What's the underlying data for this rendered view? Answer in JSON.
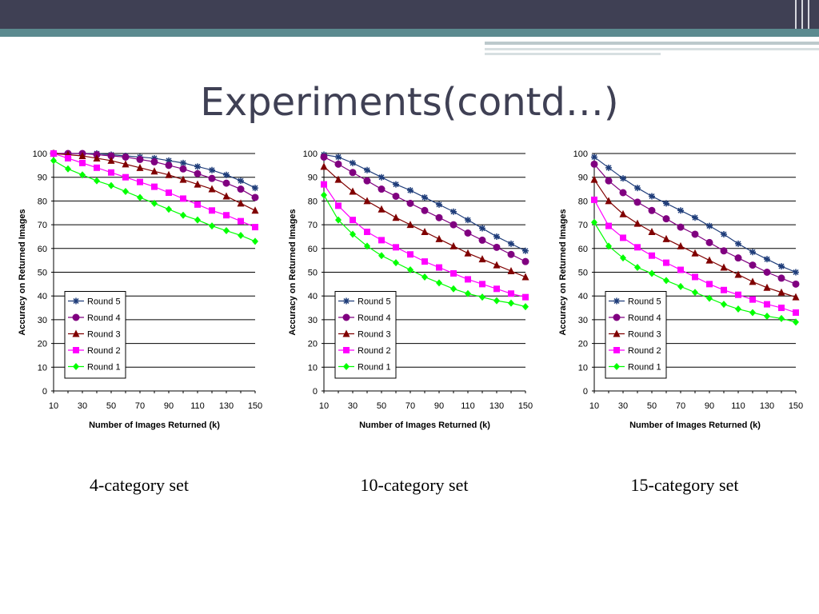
{
  "slide": {
    "title": "Experiments(contd…)",
    "captions": [
      "4-category set",
      "10-category set",
      "15-category set"
    ]
  },
  "colors": {
    "background": "#ffffff",
    "top_band": "#3f4054",
    "teal_band": "#5b8a8f",
    "title": "#3f4054"
  },
  "chart_data": [
    {
      "type": "line",
      "xlabel": "Number of Images Returned (k)",
      "ylabel": "Accuracy on Returned Images",
      "x": [
        10,
        20,
        30,
        40,
        50,
        60,
        70,
        80,
        90,
        100,
        110,
        120,
        130,
        140,
        150
      ],
      "x_ticks": [
        10,
        30,
        50,
        70,
        90,
        110,
        130,
        150
      ],
      "y_ticks": [
        0,
        10,
        20,
        30,
        40,
        50,
        60,
        70,
        80,
        90,
        100
      ],
      "xlim": [
        10,
        150
      ],
      "ylim": [
        0,
        100
      ],
      "grid": "horizontal",
      "legend_position": "lower-left",
      "series": [
        {
          "name": "Round 5",
          "marker": "star",
          "color": "#1f3d7a",
          "values": [
            100,
            100,
            100,
            100,
            99.5,
            99,
            98.5,
            98,
            97,
            96,
            94.5,
            93,
            91,
            88.5,
            85.5
          ]
        },
        {
          "name": "Round 4",
          "marker": "circle",
          "color": "#800080",
          "values": [
            100,
            100,
            100,
            99.5,
            99,
            98.5,
            97.5,
            96.5,
            95,
            93.5,
            91.5,
            89.5,
            87.5,
            85,
            81.5
          ]
        },
        {
          "name": "Round 3",
          "marker": "triangle",
          "color": "#800000",
          "values": [
            100,
            99.5,
            99,
            98,
            97,
            95.5,
            94,
            92.5,
            91,
            89,
            87,
            85,
            82,
            79,
            76
          ]
        },
        {
          "name": "Round 2",
          "marker": "square",
          "color": "#ff00ff",
          "values": [
            100,
            98,
            96,
            94,
            92,
            90,
            88,
            86,
            83.5,
            81,
            78.5,
            76,
            74,
            71.5,
            69
          ]
        },
        {
          "name": "Round 1",
          "marker": "diamond",
          "color": "#00ff00",
          "values": [
            97,
            93.5,
            91,
            88.5,
            86.5,
            84,
            81.5,
            79,
            76.5,
            74,
            72,
            69.5,
            67.5,
            65.5,
            63
          ]
        }
      ]
    },
    {
      "type": "line",
      "xlabel": "Number of Images Returned (k)",
      "ylabel": "Accuracy on Returned Images",
      "x": [
        10,
        20,
        30,
        40,
        50,
        60,
        70,
        80,
        90,
        100,
        110,
        120,
        130,
        140,
        150
      ],
      "x_ticks": [
        10,
        30,
        50,
        70,
        90,
        110,
        130,
        150
      ],
      "y_ticks": [
        0,
        10,
        20,
        30,
        40,
        50,
        60,
        70,
        80,
        90,
        100
      ],
      "xlim": [
        10,
        150
      ],
      "ylim": [
        0,
        100
      ],
      "grid": "horizontal",
      "legend_position": "lower-left",
      "series": [
        {
          "name": "Round 5",
          "marker": "star",
          "color": "#1f3d7a",
          "values": [
            99.5,
            98.5,
            96,
            93,
            90,
            87,
            84.5,
            81.5,
            78.5,
            75.5,
            72,
            68.5,
            65,
            62,
            59
          ]
        },
        {
          "name": "Round 4",
          "marker": "circle",
          "color": "#800080",
          "values": [
            98.5,
            95.5,
            92,
            88.5,
            85,
            82,
            79,
            76,
            73,
            70,
            66.5,
            63.5,
            60.5,
            57.5,
            54.5
          ]
        },
        {
          "name": "Round 3",
          "marker": "triangle",
          "color": "#800000",
          "values": [
            94.5,
            89,
            84,
            80,
            76.5,
            73,
            70,
            67,
            64,
            61,
            58,
            55.5,
            53,
            50.5,
            48
          ]
        },
        {
          "name": "Round 2",
          "marker": "square",
          "color": "#ff00ff",
          "values": [
            87,
            78,
            72,
            67,
            63.5,
            60.5,
            57.5,
            54.5,
            52,
            49.5,
            47,
            45,
            43,
            41,
            39.5
          ]
        },
        {
          "name": "Round 1",
          "marker": "diamond",
          "color": "#00ff00",
          "values": [
            82.5,
            72,
            66,
            61,
            57,
            54,
            51,
            48,
            45.5,
            43,
            41,
            39.5,
            38,
            37,
            35.5
          ]
        }
      ]
    },
    {
      "type": "line",
      "xlabel": "Number of Images Returned (k)",
      "ylabel": "Accuracy on Returned Images",
      "x": [
        10,
        20,
        30,
        40,
        50,
        60,
        70,
        80,
        90,
        100,
        110,
        120,
        130,
        140,
        150
      ],
      "x_ticks": [
        10,
        30,
        50,
        70,
        90,
        110,
        130,
        150
      ],
      "y_ticks": [
        0,
        10,
        20,
        30,
        40,
        50,
        60,
        70,
        80,
        90,
        100
      ],
      "xlim": [
        10,
        150
      ],
      "ylim": [
        0,
        100
      ],
      "grid": "horizontal",
      "legend_position": "lower-left",
      "series": [
        {
          "name": "Round 5",
          "marker": "star",
          "color": "#1f3d7a",
          "values": [
            98.5,
            94,
            89.5,
            85.5,
            82,
            79,
            76,
            73,
            69.5,
            66,
            62,
            58.5,
            55.5,
            52.5,
            50
          ]
        },
        {
          "name": "Round 4",
          "marker": "circle",
          "color": "#800080",
          "values": [
            95.5,
            88.5,
            83.5,
            79.5,
            76,
            72.5,
            69,
            66,
            62.5,
            59,
            56,
            53,
            50,
            47.5,
            45
          ]
        },
        {
          "name": "Round 3",
          "marker": "triangle",
          "color": "#800000",
          "values": [
            89,
            80,
            74.5,
            70.5,
            67,
            64,
            61,
            58,
            55,
            52,
            49,
            46,
            43.5,
            41.5,
            39.5
          ]
        },
        {
          "name": "Round 2",
          "marker": "square",
          "color": "#ff00ff",
          "values": [
            80.5,
            69.5,
            64.5,
            60.5,
            57,
            54,
            51,
            48,
            45,
            42.5,
            40.5,
            38.5,
            36.5,
            35,
            33
          ]
        },
        {
          "name": "Round 1",
          "marker": "diamond",
          "color": "#00ff00",
          "values": [
            71,
            61,
            56,
            52,
            49.5,
            46.5,
            44,
            41.5,
            39,
            36.5,
            34.5,
            33,
            31.5,
            30.5,
            29
          ]
        }
      ]
    }
  ]
}
